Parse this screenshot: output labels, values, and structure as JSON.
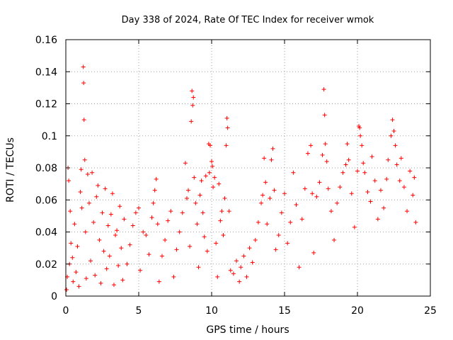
{
  "chart_data": {
    "type": "scatter",
    "title": "Day 338 of 2024, Rate Of TEC Index for receiver wmok",
    "xlabel": "GPS time / hours",
    "ylabel": "ROTI / TECUs",
    "xlim": [
      0,
      25
    ],
    "ylim": [
      0,
      0.16
    ],
    "xticks": [
      0,
      5,
      10,
      15,
      20,
      25
    ],
    "xtick_labels": [
      "0",
      "5",
      "10",
      "15",
      "20",
      "25"
    ],
    "yticks": [
      0,
      0.02,
      0.04,
      0.06,
      0.08,
      0.1,
      0.12,
      0.14,
      0.16
    ],
    "ytick_labels": [
      "0",
      "0.02",
      "0.04",
      "0.06",
      "0.08",
      "0.1",
      "0.12",
      "0.14",
      "0.16"
    ],
    "grid": true,
    "marker": "+",
    "color": "#ff0000",
    "series": [
      {
        "points": [
          [
            0.05,
            0.004
          ],
          [
            0.1,
            0.012
          ],
          [
            0.15,
            0.08
          ],
          [
            0.2,
            0.072
          ],
          [
            0.25,
            0.02
          ],
          [
            0.3,
            0.053
          ],
          [
            0.35,
            0.033
          ],
          [
            0.45,
            0.024
          ],
          [
            0.5,
            0.009
          ],
          [
            0.6,
            0.045
          ],
          [
            0.7,
            0.015
          ],
          [
            0.8,
            0.031
          ],
          [
            0.9,
            0.006
          ],
          [
            1.0,
            0.065
          ],
          [
            1.05,
            0.079
          ],
          [
            1.1,
            0.055
          ],
          [
            1.2,
            0.143
          ],
          [
            1.22,
            0.133
          ],
          [
            1.25,
            0.11
          ],
          [
            1.3,
            0.085
          ],
          [
            1.35,
            0.04
          ],
          [
            1.4,
            0.011
          ],
          [
            1.5,
            0.076
          ],
          [
            1.6,
            0.058
          ],
          [
            1.7,
            0.022
          ],
          [
            1.8,
            0.077
          ],
          [
            1.9,
            0.046
          ],
          [
            2.0,
            0.013
          ],
          [
            2.1,
            0.062
          ],
          [
            2.2,
            0.069
          ],
          [
            2.3,
            0.035
          ],
          [
            2.4,
            0.008
          ],
          [
            2.5,
            0.052
          ],
          [
            2.6,
            0.028
          ],
          [
            2.7,
            0.067
          ],
          [
            2.8,
            0.017
          ],
          [
            2.9,
            0.044
          ],
          [
            3.0,
            0.025
          ],
          [
            3.1,
            0.051
          ],
          [
            3.2,
            0.064
          ],
          [
            3.3,
            0.007
          ],
          [
            3.4,
            0.038
          ],
          [
            3.5,
            0.041
          ],
          [
            3.6,
            0.019
          ],
          [
            3.7,
            0.056
          ],
          [
            3.8,
            0.03
          ],
          [
            3.9,
            0.01
          ],
          [
            4.0,
            0.048
          ],
          [
            4.2,
            0.02
          ],
          [
            4.4,
            0.032
          ],
          [
            4.6,
            0.044
          ],
          [
            4.8,
            0.052
          ],
          [
            5.0,
            0.055
          ],
          [
            5.1,
            0.016
          ],
          [
            5.3,
            0.04
          ],
          [
            5.5,
            0.038
          ],
          [
            5.7,
            0.026
          ],
          [
            5.9,
            0.049
          ],
          [
            6.0,
            0.058
          ],
          [
            6.1,
            0.066
          ],
          [
            6.2,
            0.073
          ],
          [
            6.3,
            0.045
          ],
          [
            6.4,
            0.009
          ],
          [
            6.6,
            0.025
          ],
          [
            6.8,
            0.035
          ],
          [
            7.0,
            0.047
          ],
          [
            7.2,
            0.053
          ],
          [
            7.4,
            0.012
          ],
          [
            7.6,
            0.029
          ],
          [
            7.8,
            0.04
          ],
          [
            8.0,
            0.052
          ],
          [
            8.2,
            0.083
          ],
          [
            8.3,
            0.061
          ],
          [
            8.4,
            0.066
          ],
          [
            8.5,
            0.031
          ],
          [
            8.6,
            0.109
          ],
          [
            8.65,
            0.128
          ],
          [
            8.7,
            0.119
          ],
          [
            8.75,
            0.124
          ],
          [
            8.8,
            0.074
          ],
          [
            8.9,
            0.058
          ],
          [
            9.0,
            0.045
          ],
          [
            9.1,
            0.018
          ],
          [
            9.2,
            0.063
          ],
          [
            9.3,
            0.072
          ],
          [
            9.4,
            0.052
          ],
          [
            9.5,
            0.037
          ],
          [
            9.6,
            0.075
          ],
          [
            9.7,
            0.028
          ],
          [
            9.8,
            0.095
          ],
          [
            9.85,
            0.077
          ],
          [
            9.9,
            0.094
          ],
          [
            10.0,
            0.084
          ],
          [
            10.05,
            0.081
          ],
          [
            10.1,
            0.068
          ],
          [
            10.2,
            0.074
          ],
          [
            10.3,
            0.033
          ],
          [
            10.4,
            0.012
          ],
          [
            10.5,
            0.07
          ],
          [
            10.6,
            0.047
          ],
          [
            10.7,
            0.053
          ],
          [
            10.8,
            0.038
          ],
          [
            10.9,
            0.061
          ],
          [
            11.0,
            0.094
          ],
          [
            11.05,
            0.111
          ],
          [
            11.1,
            0.105
          ],
          [
            11.2,
            0.053
          ],
          [
            11.3,
            0.016
          ],
          [
            11.5,
            0.014
          ],
          [
            11.7,
            0.022
          ],
          [
            11.9,
            0.009
          ],
          [
            12.0,
            0.018
          ],
          [
            12.2,
            0.025
          ],
          [
            12.4,
            0.012
          ],
          [
            12.6,
            0.03
          ],
          [
            12.8,
            0.021
          ],
          [
            13.0,
            0.035
          ],
          [
            13.2,
            0.046
          ],
          [
            13.4,
            0.058
          ],
          [
            13.5,
            0.063
          ],
          [
            13.6,
            0.086
          ],
          [
            13.7,
            0.071
          ],
          [
            13.8,
            0.045
          ],
          [
            14.0,
            0.061
          ],
          [
            14.1,
            0.085
          ],
          [
            14.2,
            0.092
          ],
          [
            14.3,
            0.066
          ],
          [
            14.4,
            0.029
          ],
          [
            14.6,
            0.038
          ],
          [
            14.8,
            0.052
          ],
          [
            15.0,
            0.064
          ],
          [
            15.2,
            0.033
          ],
          [
            15.4,
            0.046
          ],
          [
            15.6,
            0.077
          ],
          [
            15.8,
            0.057
          ],
          [
            16.0,
            0.018
          ],
          [
            16.2,
            0.048
          ],
          [
            16.4,
            0.067
          ],
          [
            16.6,
            0.089
          ],
          [
            16.8,
            0.094
          ],
          [
            16.9,
            0.064
          ],
          [
            17.0,
            0.027
          ],
          [
            17.2,
            0.062
          ],
          [
            17.4,
            0.071
          ],
          [
            17.6,
            0.088
          ],
          [
            17.7,
            0.129
          ],
          [
            17.75,
            0.113
          ],
          [
            17.8,
            0.095
          ],
          [
            17.9,
            0.084
          ],
          [
            18.0,
            0.067
          ],
          [
            18.2,
            0.053
          ],
          [
            18.4,
            0.035
          ],
          [
            18.6,
            0.058
          ],
          [
            18.8,
            0.068
          ],
          [
            19.0,
            0.077
          ],
          [
            19.2,
            0.082
          ],
          [
            19.3,
            0.095
          ],
          [
            19.4,
            0.085
          ],
          [
            19.6,
            0.064
          ],
          [
            19.8,
            0.043
          ],
          [
            20.0,
            0.078
          ],
          [
            20.1,
            0.106
          ],
          [
            20.15,
            0.105
          ],
          [
            20.2,
            0.1
          ],
          [
            20.3,
            0.094
          ],
          [
            20.4,
            0.083
          ],
          [
            20.5,
            0.077
          ],
          [
            20.7,
            0.065
          ],
          [
            20.9,
            0.059
          ],
          [
            21.0,
            0.087
          ],
          [
            21.2,
            0.072
          ],
          [
            21.4,
            0.048
          ],
          [
            21.6,
            0.066
          ],
          [
            21.8,
            0.055
          ],
          [
            22.0,
            0.073
          ],
          [
            22.1,
            0.085
          ],
          [
            22.3,
            0.1
          ],
          [
            22.4,
            0.11
          ],
          [
            22.5,
            0.103
          ],
          [
            22.6,
            0.094
          ],
          [
            22.7,
            0.082
          ],
          [
            22.9,
            0.072
          ],
          [
            23.0,
            0.086
          ],
          [
            23.2,
            0.068
          ],
          [
            23.4,
            0.053
          ],
          [
            23.6,
            0.078
          ],
          [
            23.8,
            0.063
          ],
          [
            23.9,
            0.074
          ],
          [
            24.0,
            0.046
          ]
        ]
      }
    ]
  }
}
